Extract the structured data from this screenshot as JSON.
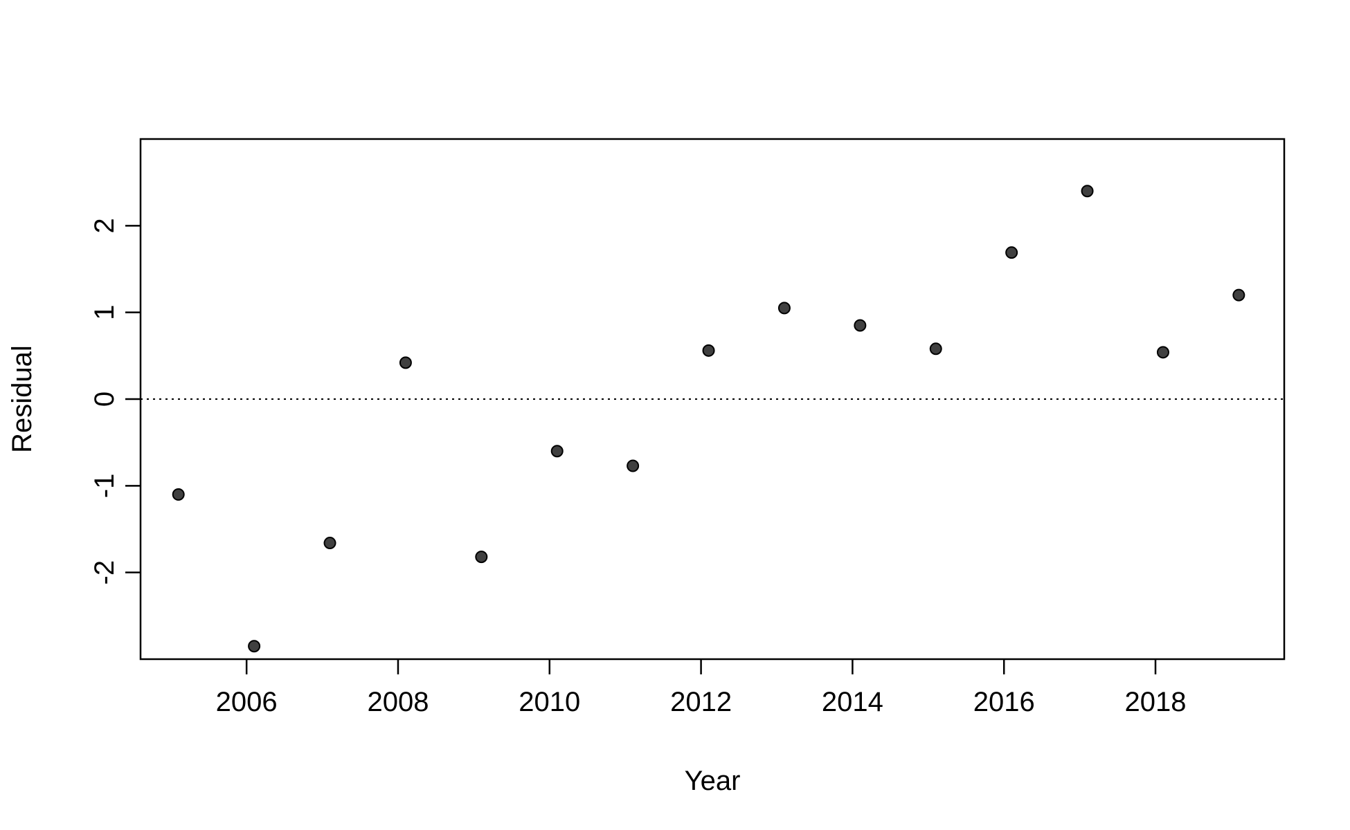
{
  "chart_data": {
    "type": "scatter",
    "title": "",
    "xlabel": "Year",
    "ylabel": "Residual",
    "xlim": [
      2004.6,
      2019.7
    ],
    "ylim": [
      -3.0,
      3.0
    ],
    "xticks": [
      2006,
      2008,
      2010,
      2012,
      2014,
      2016,
      2018
    ],
    "yticks": [
      -2,
      -1,
      0,
      1,
      2
    ],
    "reference_line": {
      "y": 0,
      "style": "dotted"
    },
    "grid": false,
    "legend": "none",
    "point_color": "#404040",
    "points": [
      {
        "x": 2005.1,
        "y": -1.1
      },
      {
        "x": 2006.1,
        "y": -2.85
      },
      {
        "x": 2007.1,
        "y": -1.66
      },
      {
        "x": 2008.1,
        "y": 0.42
      },
      {
        "x": 2009.1,
        "y": -1.82
      },
      {
        "x": 2010.1,
        "y": -0.6
      },
      {
        "x": 2011.1,
        "y": -0.77
      },
      {
        "x": 2012.1,
        "y": 0.56
      },
      {
        "x": 2013.1,
        "y": 1.05
      },
      {
        "x": 2014.1,
        "y": 0.85
      },
      {
        "x": 2015.1,
        "y": 0.58
      },
      {
        "x": 2016.1,
        "y": 1.69
      },
      {
        "x": 2017.1,
        "y": 2.4
      },
      {
        "x": 2018.1,
        "y": 0.54
      },
      {
        "x": 2019.1,
        "y": 1.2
      }
    ]
  }
}
